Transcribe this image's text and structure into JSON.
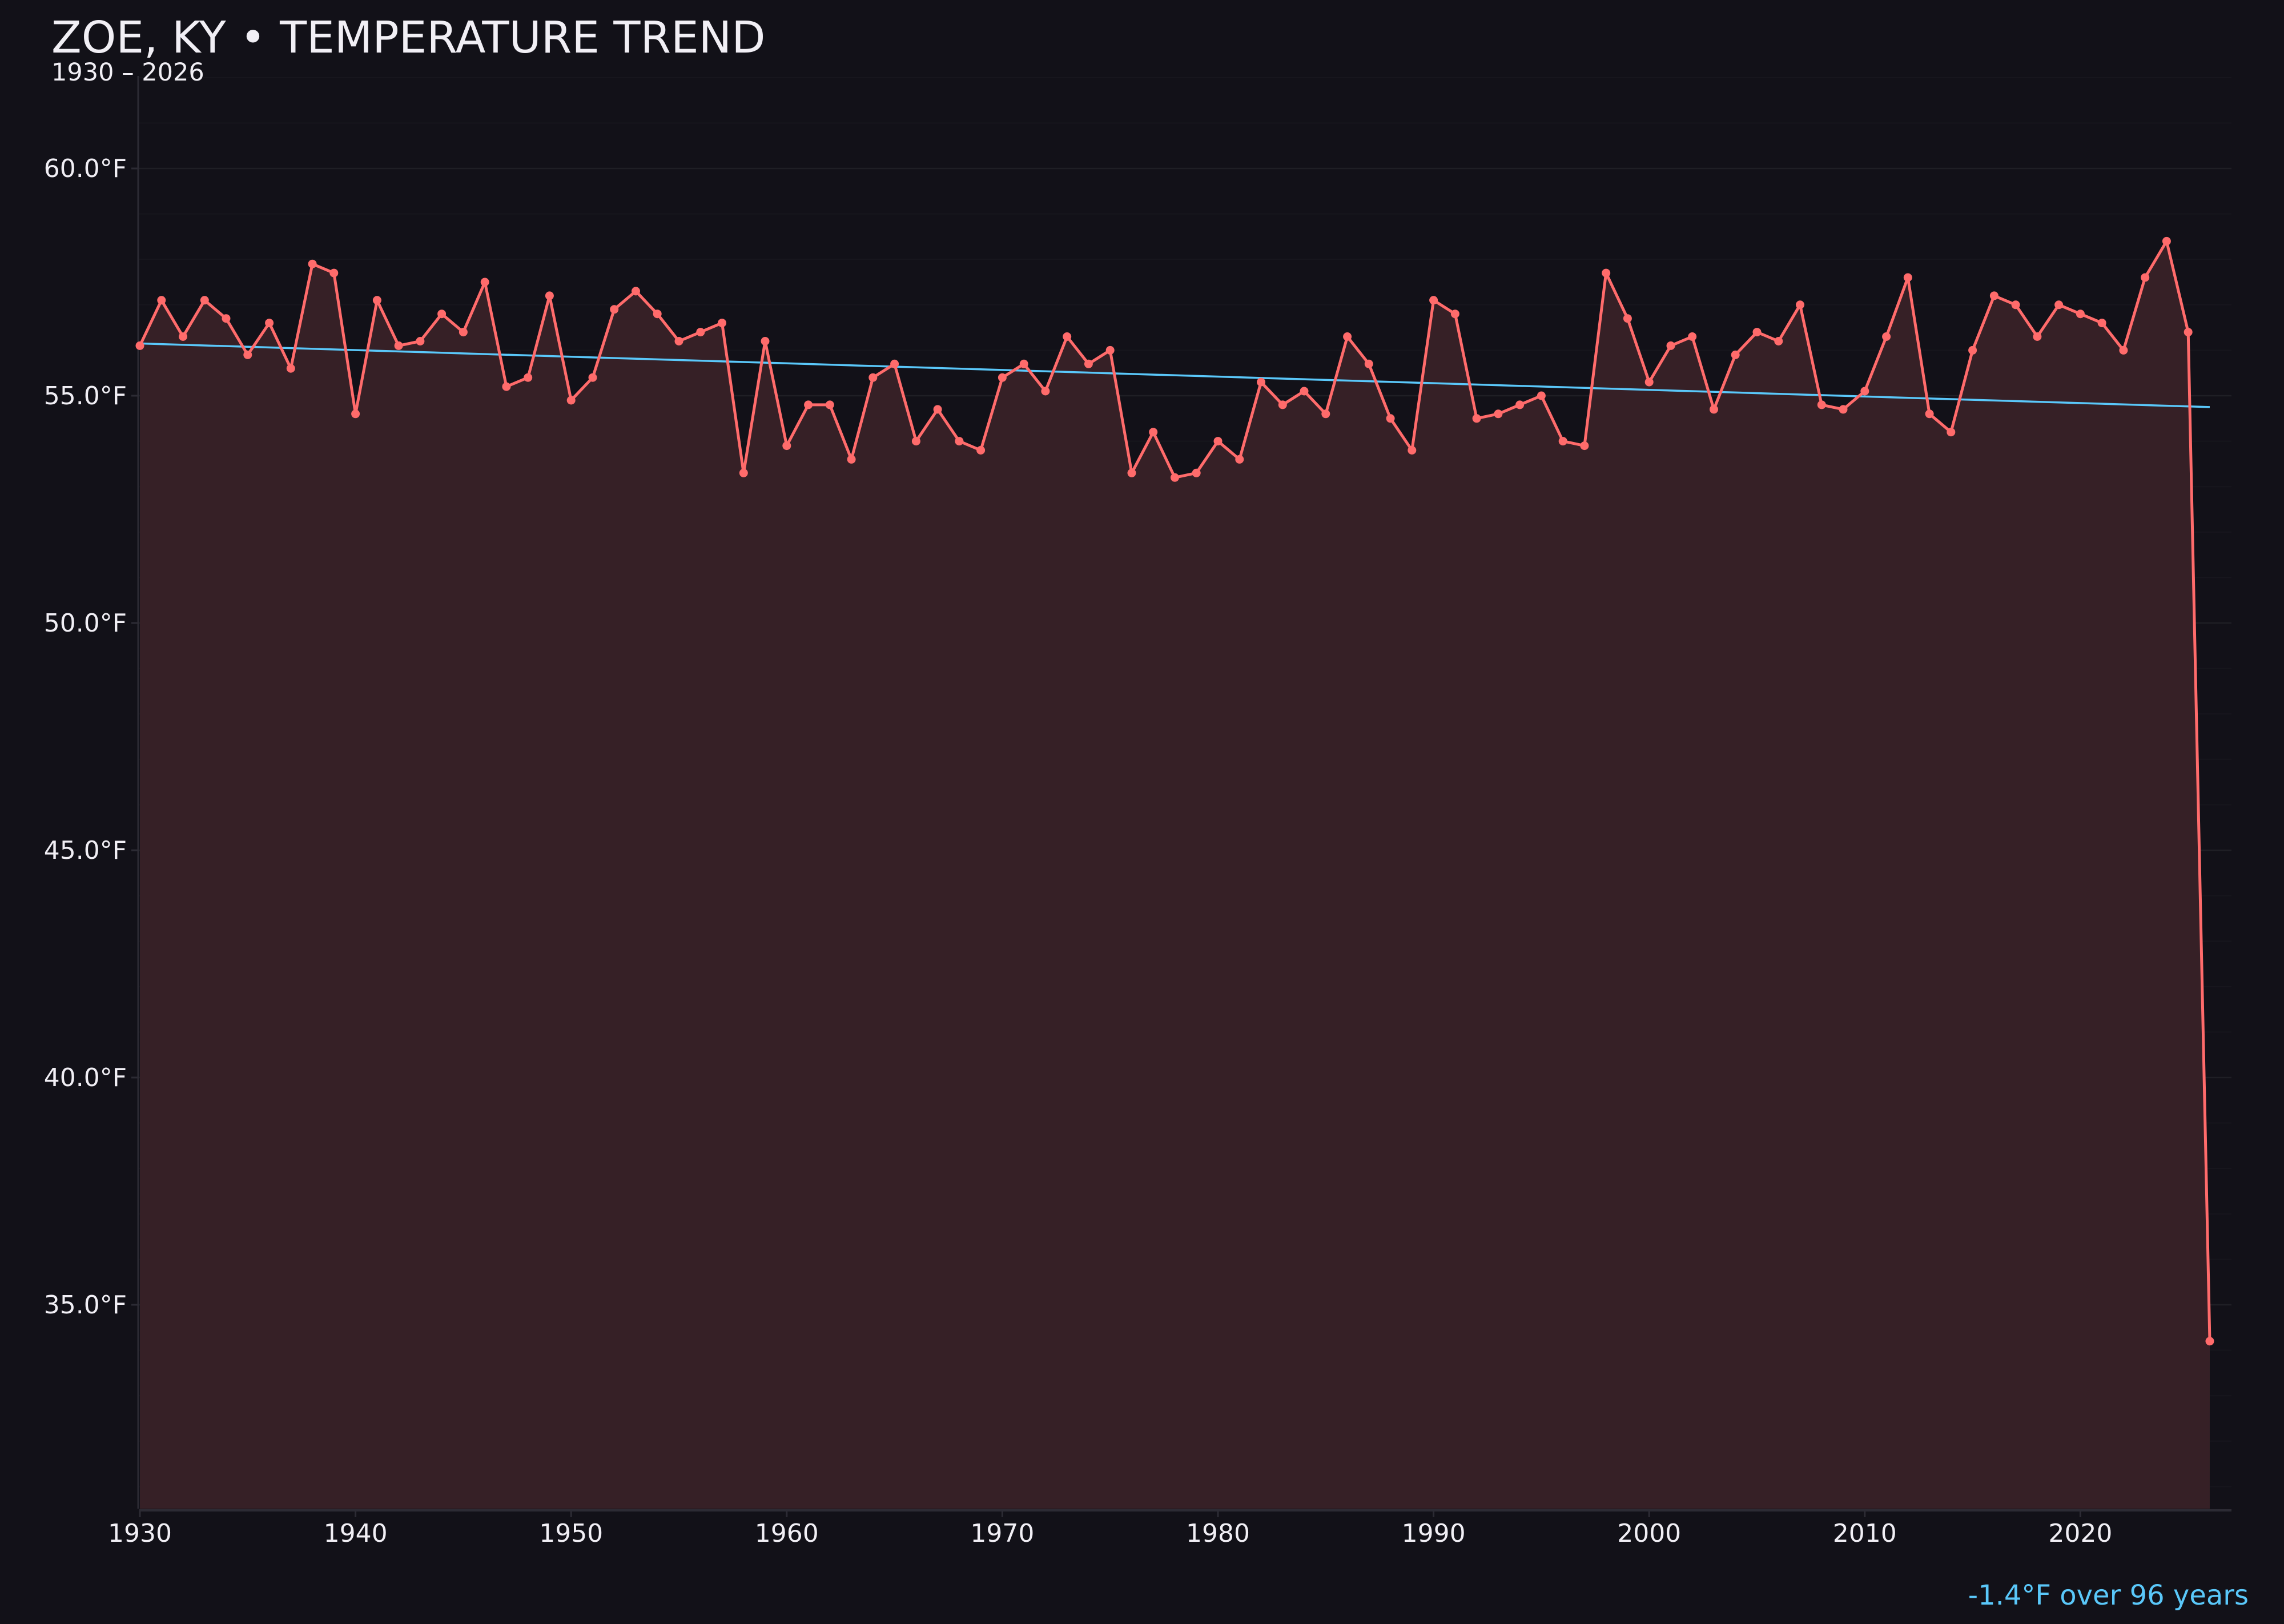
{
  "header": {
    "title": "ZOE, KY • TEMPERATURE TREND",
    "subtitle": "1930 – 2026"
  },
  "annotation": {
    "text": "-1.4°F over 96 years"
  },
  "colors": {
    "background": "#121118",
    "line": "#ff6b6b",
    "fill": "#362026",
    "trend": "#5ac8fa",
    "grid": "#24222a",
    "axis": "#2c2b34",
    "text": "#f1eff5"
  },
  "chart_data": {
    "type": "line",
    "title": "ZOE, KY • TEMPERATURE TREND",
    "subtitle": "1930 – 2026",
    "xlabel": "",
    "ylabel": "",
    "xlim": [
      1930,
      2027
    ],
    "ylim": [
      30.5,
      62.0
    ],
    "x_ticks": [
      1930,
      1940,
      1950,
      1960,
      1970,
      1980,
      1990,
      2000,
      2010,
      2020
    ],
    "x_tick_labels": [
      "1930",
      "1940",
      "1950",
      "1960",
      "1970",
      "1980",
      "1990",
      "2000",
      "2010",
      "2020"
    ],
    "y_ticks": [
      35,
      40,
      45,
      50,
      55,
      60
    ],
    "y_tick_labels": [
      "35.0°F",
      "40.0°F",
      "45.0°F",
      "50.0°F",
      "55.0°F",
      "60.0°F"
    ],
    "grid": true,
    "minor_grid_step": 1,
    "legend": null,
    "x": [
      1930,
      1931,
      1932,
      1933,
      1934,
      1935,
      1936,
      1937,
      1938,
      1939,
      1940,
      1941,
      1942,
      1943,
      1944,
      1945,
      1946,
      1947,
      1948,
      1949,
      1950,
      1951,
      1952,
      1953,
      1954,
      1955,
      1956,
      1957,
      1958,
      1959,
      1960,
      1961,
      1962,
      1963,
      1964,
      1965,
      1966,
      1967,
      1968,
      1969,
      1970,
      1971,
      1972,
      1973,
      1974,
      1975,
      1976,
      1977,
      1978,
      1979,
      1980,
      1981,
      1982,
      1983,
      1984,
      1985,
      1986,
      1987,
      1988,
      1989,
      1990,
      1991,
      1992,
      1993,
      1994,
      1995,
      1996,
      1997,
      1998,
      1999,
      2000,
      2001,
      2002,
      2003,
      2004,
      2005,
      2006,
      2007,
      2008,
      2009,
      2010,
      2011,
      2012,
      2013,
      2014,
      2015,
      2016,
      2017,
      2018,
      2019,
      2020,
      2021,
      2022,
      2023,
      2024,
      2025,
      2026
    ],
    "series": [
      {
        "name": "Annual mean temperature (°F)",
        "style": "line-markers-area",
        "values": [
          56.1,
          57.1,
          56.3,
          57.1,
          56.7,
          55.9,
          56.6,
          55.6,
          57.9,
          57.7,
          54.6,
          57.1,
          56.1,
          56.2,
          56.8,
          56.4,
          57.5,
          55.2,
          55.4,
          57.2,
          54.9,
          55.4,
          56.9,
          57.3,
          56.8,
          56.2,
          56.4,
          56.6,
          53.3,
          56.2,
          53.9,
          54.8,
          54.8,
          53.6,
          55.4,
          55.7,
          54.0,
          54.7,
          54.0,
          53.8,
          55.4,
          55.7,
          55.1,
          56.3,
          55.7,
          56.0,
          53.3,
          54.2,
          53.2,
          53.3,
          54.0,
          53.6,
          55.3,
          54.8,
          55.1,
          54.6,
          56.3,
          55.7,
          54.5,
          53.8,
          57.1,
          56.8,
          54.5,
          54.6,
          54.8,
          55.0,
          54.0,
          53.9,
          57.7,
          56.7,
          55.3,
          56.1,
          56.3,
          54.7,
          55.9,
          56.4,
          56.2,
          57.0,
          54.8,
          54.7,
          55.1,
          56.3,
          57.6,
          54.6,
          54.2,
          56.0,
          57.2,
          57.0,
          56.3,
          57.0,
          56.8,
          56.6,
          56.0,
          57.6,
          58.4,
          56.4,
          34.2
        ]
      },
      {
        "name": "Linear trend",
        "style": "line",
        "x": [
          1930,
          2026
        ],
        "values": [
          56.15,
          54.75
        ]
      }
    ],
    "annotations": [
      "-1.4°F over 96 years"
    ]
  }
}
